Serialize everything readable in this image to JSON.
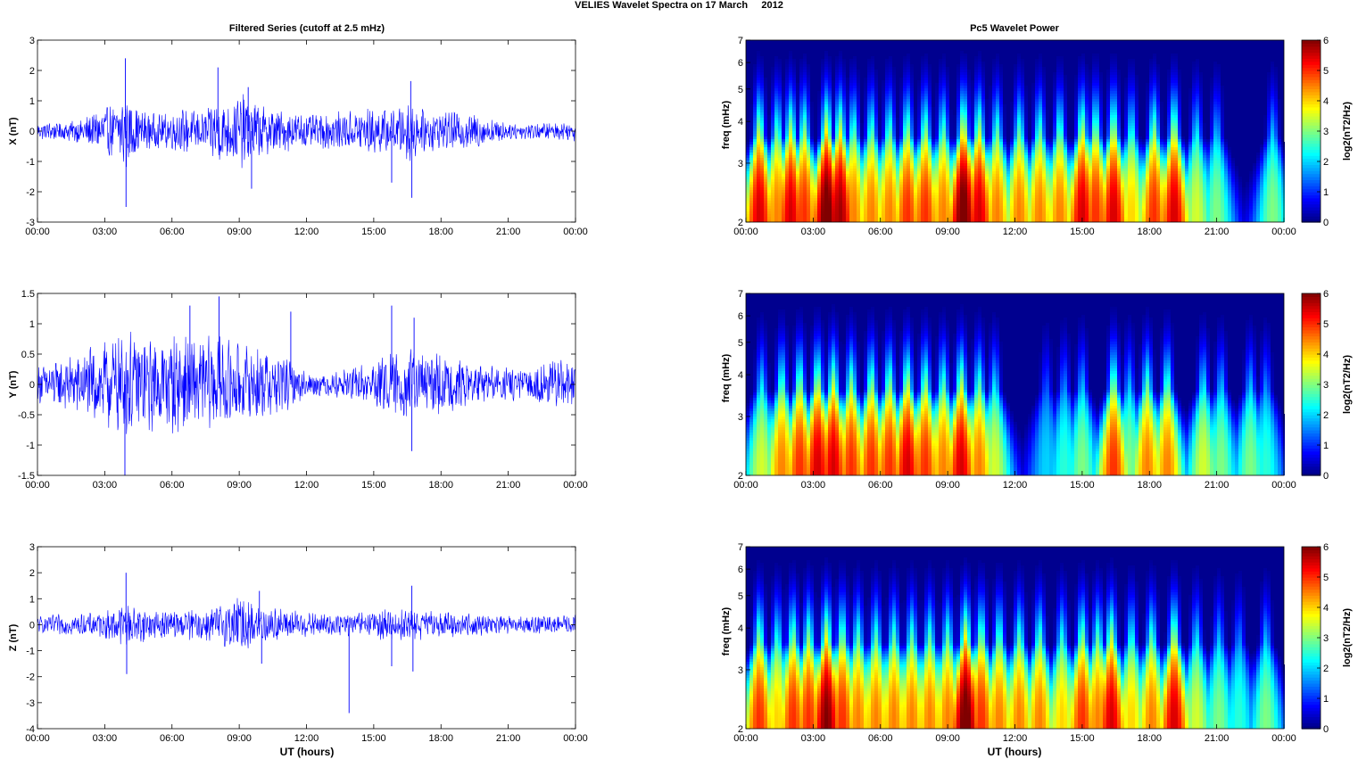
{
  "figure": {
    "title": "VELIES Wavelet Spectra on 17 March     2012",
    "left_title": "Filtered Series (cutoff at 2.5 mHz)",
    "right_title": "Pc5 Wavelet Power",
    "xlabel": "UT (hours)",
    "spectrogram_ylabel": "freq (mHz)",
    "colorbar_label": "log2(nT2/Hz)"
  },
  "colors": {
    "trace": "#0000ff",
    "spectrum_background": "#00008f",
    "axes": "#000000"
  },
  "chart_data": [
    {
      "type": "line",
      "component": "X",
      "ylabel": "X (nT)",
      "xlim": [
        0,
        24
      ],
      "ylim": [
        -3,
        3
      ],
      "xticks": [
        "00:00",
        "03:00",
        "06:00",
        "09:00",
        "12:00",
        "15:00",
        "18:00",
        "21:00",
        "00:00"
      ],
      "yticks": [
        "-3",
        "-2",
        "-1",
        "0",
        "1",
        "2",
        "3"
      ],
      "envelope": {
        "x": [
          0,
          1,
          2,
          3,
          3.5,
          3.9,
          4.5,
          5.5,
          6.5,
          7.5,
          8.1,
          8.5,
          9.2,
          10,
          11,
          12,
          13,
          14,
          15,
          16,
          16.7,
          17,
          18,
          19,
          20,
          21,
          22,
          23,
          24
        ],
        "amp": [
          0.2,
          0.25,
          0.3,
          0.6,
          0.7,
          1.0,
          0.5,
          0.4,
          0.55,
          0.5,
          0.9,
          0.7,
          0.9,
          0.6,
          0.5,
          0.4,
          0.45,
          0.5,
          0.6,
          0.5,
          0.9,
          0.55,
          0.45,
          0.5,
          0.35,
          0.2,
          0.2,
          0.2,
          0.25
        ]
      },
      "spikes": [
        {
          "x": 3.92,
          "y": 2.4
        },
        {
          "x": 3.95,
          "y": -2.5
        },
        {
          "x": 8.05,
          "y": 2.1
        },
        {
          "x": 9.4,
          "y": 1.45
        },
        {
          "x": 9.55,
          "y": -1.9
        },
        {
          "x": 15.8,
          "y": -1.7
        },
        {
          "x": 16.65,
          "y": 1.65
        },
        {
          "x": 16.7,
          "y": -2.2
        }
      ]
    },
    {
      "type": "line",
      "component": "Y",
      "ylabel": "Y (nT)",
      "xlim": [
        0,
        24
      ],
      "ylim": [
        -1.5,
        1.5
      ],
      "xticks": [
        "00:00",
        "03:00",
        "06:00",
        "09:00",
        "12:00",
        "15:00",
        "18:00",
        "21:00",
        "00:00"
      ],
      "yticks": [
        "-1.5",
        "-1",
        "-0.5",
        "0",
        "0.5",
        "1",
        "1.5"
      ],
      "envelope": {
        "x": [
          0,
          1,
          2,
          3,
          4,
          5,
          6,
          7,
          8,
          9,
          10,
          11,
          12,
          13,
          14,
          15,
          16,
          17,
          18,
          19,
          20,
          21,
          22,
          23,
          24
        ],
        "amp": [
          0.25,
          0.3,
          0.4,
          0.55,
          0.65,
          0.6,
          0.6,
          0.55,
          0.6,
          0.5,
          0.45,
          0.35,
          0.15,
          0.15,
          0.2,
          0.3,
          0.4,
          0.45,
          0.35,
          0.3,
          0.25,
          0.2,
          0.2,
          0.3,
          0.3
        ]
      },
      "spikes": [
        {
          "x": 3.9,
          "y": -1.5
        },
        {
          "x": 6.8,
          "y": 1.3
        },
        {
          "x": 8.1,
          "y": 1.45
        },
        {
          "x": 11.3,
          "y": 1.2
        },
        {
          "x": 15.8,
          "y": 1.3
        },
        {
          "x": 16.7,
          "y": -1.1
        },
        {
          "x": 16.8,
          "y": 1.1
        }
      ]
    },
    {
      "type": "line",
      "component": "Z",
      "ylabel": "Z (nT)",
      "xlim": [
        0,
        24
      ],
      "ylim": [
        -4,
        3
      ],
      "xticks": [
        "00:00",
        "03:00",
        "06:00",
        "09:00",
        "12:00",
        "15:00",
        "18:00",
        "21:00",
        "00:00"
      ],
      "yticks": [
        "-4",
        "-3",
        "-2",
        "-1",
        "0",
        "1",
        "2",
        "3"
      ],
      "envelope": {
        "x": [
          0,
          1,
          2,
          3,
          3.5,
          4,
          5,
          6,
          7,
          8,
          9,
          10,
          11,
          12,
          13,
          14,
          15,
          16,
          17,
          18,
          19,
          20,
          21,
          22,
          23,
          24
        ],
        "amp": [
          0.25,
          0.3,
          0.3,
          0.4,
          0.5,
          0.6,
          0.45,
          0.4,
          0.45,
          0.55,
          0.8,
          0.6,
          0.45,
          0.35,
          0.3,
          0.35,
          0.4,
          0.5,
          0.45,
          0.35,
          0.35,
          0.3,
          0.25,
          0.25,
          0.25,
          0.3
        ]
      },
      "spikes": [
        {
          "x": 3.95,
          "y": 2.0
        },
        {
          "x": 3.98,
          "y": -1.9
        },
        {
          "x": 9.9,
          "y": 1.3
        },
        {
          "x": 10.0,
          "y": -1.5
        },
        {
          "x": 13.9,
          "y": -3.4
        },
        {
          "x": 15.8,
          "y": -1.6
        },
        {
          "x": 16.7,
          "y": 1.5
        },
        {
          "x": 16.75,
          "y": -1.8
        }
      ]
    },
    {
      "type": "heatmap",
      "component": "X",
      "ylabel": "freq (mHz)",
      "xlim": [
        0,
        24
      ],
      "ylim": [
        2,
        7
      ],
      "yscale": "log",
      "clim": [
        0,
        6
      ],
      "colormap": "jet",
      "xticks": [
        "00:00",
        "03:00",
        "06:00",
        "09:00",
        "12:00",
        "15:00",
        "18:00",
        "21:00",
        "00:00"
      ],
      "yticks": [
        "2",
        "3",
        "4",
        "5",
        "6",
        "7"
      ],
      "cbar_ticks": [
        "0",
        "1",
        "2",
        "3",
        "4",
        "5",
        "6"
      ],
      "bursts": [
        [
          0.6,
          5.5
        ],
        [
          1.4,
          4.5
        ],
        [
          2,
          5.5
        ],
        [
          2.6,
          5
        ],
        [
          3.6,
          6.2
        ],
        [
          4.2,
          5.8
        ],
        [
          4.8,
          4.5
        ],
        [
          5.6,
          4.5
        ],
        [
          6.4,
          4.5
        ],
        [
          7.2,
          5
        ],
        [
          8,
          5
        ],
        [
          8.8,
          4.5
        ],
        [
          9.7,
          6.2
        ],
        [
          10.4,
          5.5
        ],
        [
          11.2,
          4.5
        ],
        [
          12.2,
          4.5
        ],
        [
          13.1,
          4.5
        ],
        [
          14,
          4.5
        ],
        [
          15,
          5.5
        ],
        [
          15.6,
          5
        ],
        [
          16.4,
          5.5
        ],
        [
          17.2,
          4
        ],
        [
          18.2,
          5
        ],
        [
          19.1,
          5.5
        ],
        [
          20.1,
          3.5
        ],
        [
          21,
          3
        ],
        [
          23.5,
          3
        ]
      ]
    },
    {
      "type": "heatmap",
      "component": "Y",
      "ylabel": "freq (mHz)",
      "xlim": [
        0,
        24
      ],
      "ylim": [
        2,
        7
      ],
      "yscale": "log",
      "clim": [
        0,
        6
      ],
      "colormap": "jet",
      "xticks": [
        "00:00",
        "03:00",
        "06:00",
        "09:00",
        "12:00",
        "15:00",
        "18:00",
        "21:00",
        "00:00"
      ],
      "yticks": [
        "2",
        "3",
        "4",
        "5",
        "6",
        "7"
      ],
      "cbar_ticks": [
        "0",
        "1",
        "2",
        "3",
        "4",
        "5",
        "6"
      ],
      "bursts": [
        [
          0.7,
          3.5
        ],
        [
          1.6,
          4.5
        ],
        [
          2.4,
          5
        ],
        [
          3.2,
          5.5
        ],
        [
          3.9,
          5.5
        ],
        [
          4.7,
          5
        ],
        [
          5.6,
          5
        ],
        [
          6.4,
          5
        ],
        [
          7.2,
          5.5
        ],
        [
          8,
          5
        ],
        [
          8.8,
          4.5
        ],
        [
          9.6,
          5.5
        ],
        [
          10.4,
          4.5
        ],
        [
          11.1,
          3.5
        ],
        [
          13.4,
          2
        ],
        [
          14.2,
          2.5
        ],
        [
          15,
          3
        ],
        [
          16.4,
          5
        ],
        [
          17.1,
          3
        ],
        [
          17.9,
          4.5
        ],
        [
          18.8,
          4.5
        ],
        [
          20.4,
          3.5
        ],
        [
          21.2,
          3
        ],
        [
          22.5,
          3
        ],
        [
          23.2,
          2.5
        ]
      ]
    },
    {
      "type": "heatmap",
      "component": "Z",
      "ylabel": "freq (mHz)",
      "xlim": [
        0,
        24
      ],
      "ylim": [
        2,
        7
      ],
      "yscale": "log",
      "clim": [
        0,
        6
      ],
      "colormap": "jet",
      "xticks": [
        "00:00",
        "03:00",
        "06:00",
        "09:00",
        "12:00",
        "15:00",
        "18:00",
        "21:00",
        "00:00"
      ],
      "yticks": [
        "2",
        "3",
        "4",
        "5",
        "6",
        "7"
      ],
      "cbar_ticks": [
        "0",
        "1",
        "2",
        "3",
        "4",
        "5",
        "6"
      ],
      "bursts": [
        [
          0.6,
          5
        ],
        [
          1.4,
          4
        ],
        [
          2.1,
          5
        ],
        [
          2.8,
          5
        ],
        [
          3.6,
          6
        ],
        [
          4.3,
          5
        ],
        [
          5,
          4.5
        ],
        [
          5.8,
          4.5
        ],
        [
          6.6,
          4.5
        ],
        [
          7.4,
          4.5
        ],
        [
          8.2,
          4.5
        ],
        [
          9,
          4.5
        ],
        [
          9.8,
          6.2
        ],
        [
          10.5,
          5
        ],
        [
          11.3,
          4.5
        ],
        [
          12.2,
          4.5
        ],
        [
          13.1,
          4.5
        ],
        [
          14.1,
          4
        ],
        [
          15,
          5
        ],
        [
          15.7,
          4.5
        ],
        [
          16.3,
          5.5
        ],
        [
          17.2,
          4
        ],
        [
          18.1,
          4.5
        ],
        [
          19.1,
          5.5
        ],
        [
          20.1,
          3.5
        ],
        [
          21.1,
          3
        ],
        [
          22,
          2.5
        ],
        [
          23.2,
          3
        ]
      ]
    }
  ]
}
